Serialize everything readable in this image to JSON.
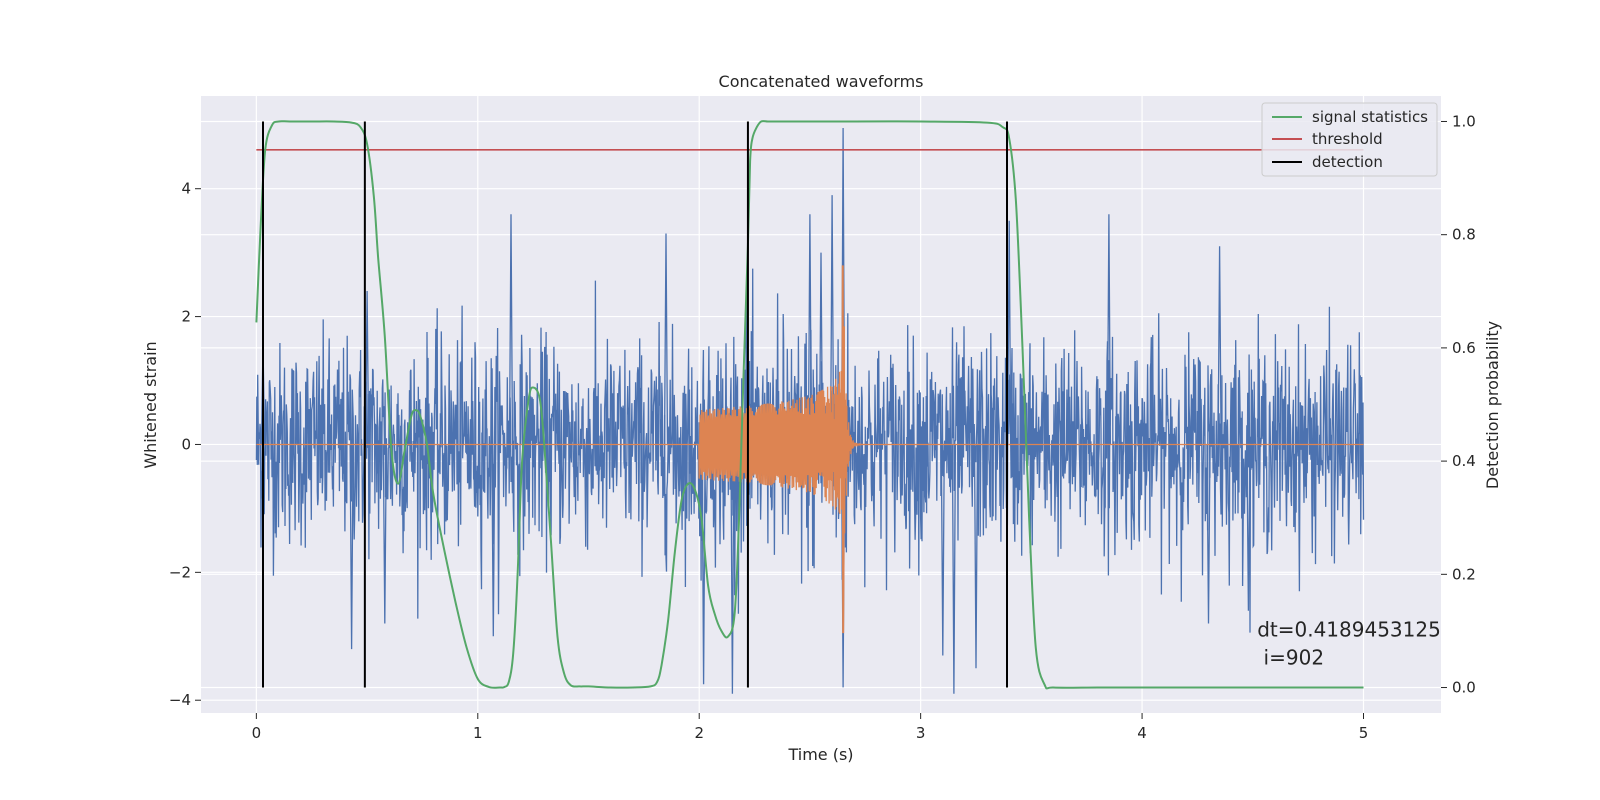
{
  "chart_data": {
    "type": "line",
    "title": "Concatenated waveforms",
    "xlabel": "Time (s)",
    "ylabel": "Whitened strain",
    "y2label": "Detection probability",
    "xlim": [
      -0.25,
      5.35
    ],
    "ylim": [
      -4.2,
      5.45
    ],
    "y2lim": [
      -0.045,
      1.045
    ],
    "xticks": [
      0,
      1,
      2,
      3,
      4,
      5
    ],
    "yticks": [
      -4,
      -2,
      0,
      2,
      4
    ],
    "y2ticks": [
      0.0,
      0.2,
      0.4,
      0.6,
      0.8,
      1.0
    ],
    "xtick_labels": [
      "0",
      "1",
      "2",
      "3",
      "4",
      "5"
    ],
    "ytick_labels": [
      "−4",
      "−2",
      "0",
      "2",
      "4"
    ],
    "y2tick_labels": [
      "0.0",
      "0.2",
      "0.4",
      "0.6",
      "0.8",
      "1.0"
    ],
    "grid": true,
    "legend_position": "top-right",
    "colors": {
      "background": "#eaeaf2",
      "grid": "#ffffff",
      "strain": "#4c72b0",
      "template": "#dd8452",
      "signal_statistics": "#55a868",
      "threshold": "#c44e52",
      "detection": "#000000"
    },
    "strain": {
      "name": "",
      "x_range": [
        0,
        5
      ],
      "typical_abs_peak": 1.8,
      "max": 4.95,
      "min": -3.9,
      "notable_peaks": [
        {
          "x": 0.03,
          "y": 1.6
        },
        {
          "x": 0.5,
          "y": 2.4
        },
        {
          "x": 1.15,
          "y": 3.6
        },
        {
          "x": 1.85,
          "y": 3.3
        },
        {
          "x": 2.5,
          "y": 3.6
        },
        {
          "x": 2.6,
          "y": 3.9
        },
        {
          "x": 2.65,
          "y": 4.95
        },
        {
          "x": 2.55,
          "y": 3.0
        },
        {
          "x": 3.4,
          "y": 3.5
        },
        {
          "x": 3.85,
          "y": 3.6
        },
        {
          "x": 4.35,
          "y": 3.1
        },
        {
          "x": 0.43,
          "y": -3.2
        },
        {
          "x": 0.58,
          "y": -2.8
        },
        {
          "x": 1.07,
          "y": -3.0
        },
        {
          "x": 2.02,
          "y": -3.75
        },
        {
          "x": 2.15,
          "y": -3.9
        },
        {
          "x": 2.65,
          "y": -3.8
        },
        {
          "x": 3.1,
          "y": -3.3
        },
        {
          "x": 3.15,
          "y": -3.9
        },
        {
          "x": 3.25,
          "y": -3.5
        },
        {
          "x": 4.3,
          "y": -2.8
        },
        {
          "x": 4.48,
          "y": -2.6
        }
      ]
    },
    "template": {
      "name": "",
      "x_range": [
        0,
        5
      ],
      "chirp_start": 2.0,
      "merger": 2.65,
      "start_amplitude": 0.55,
      "peak_max": 2.8,
      "peak_min": -2.95,
      "ringdown_end": 3.0
    },
    "signal_statistics": {
      "name": "signal statistics",
      "x": [
        0.0,
        0.02,
        0.04,
        0.07,
        0.1,
        0.15,
        0.25,
        0.35,
        0.43,
        0.47,
        0.5,
        0.53,
        0.55,
        0.58,
        0.61,
        0.64,
        0.67,
        0.7,
        0.72,
        0.74,
        0.77,
        0.8,
        0.85,
        0.9,
        0.95,
        1.0,
        1.05,
        1.1,
        1.12,
        1.14,
        1.16,
        1.18,
        1.2,
        1.23,
        1.25,
        1.28,
        1.3,
        1.33,
        1.36,
        1.39,
        1.42,
        1.46,
        1.5,
        1.6,
        1.7,
        1.78,
        1.81,
        1.83,
        1.86,
        1.89,
        1.92,
        1.95,
        1.98,
        2.01,
        2.04,
        2.07,
        2.1,
        2.13,
        2.16,
        2.18,
        2.2,
        2.22,
        2.23,
        2.24,
        2.26,
        2.28,
        2.31,
        2.35,
        2.45,
        2.7,
        3.0,
        3.3,
        3.37,
        3.4,
        3.43,
        3.46,
        3.49,
        3.52,
        3.56,
        3.6,
        3.8,
        4.0,
        4.3,
        4.6,
        4.8,
        5.0
      ],
      "y": [
        0.645,
        0.82,
        0.95,
        0.993,
        1.0,
        1.0,
        1.0,
        1.0,
        0.998,
        0.99,
        0.96,
        0.87,
        0.76,
        0.62,
        0.42,
        0.36,
        0.42,
        0.48,
        0.49,
        0.48,
        0.43,
        0.34,
        0.24,
        0.15,
        0.07,
        0.015,
        0.001,
        0.0,
        0.001,
        0.01,
        0.06,
        0.2,
        0.4,
        0.51,
        0.53,
        0.51,
        0.43,
        0.26,
        0.09,
        0.025,
        0.004,
        0.002,
        0.002,
        0.0,
        0.0,
        0.002,
        0.01,
        0.04,
        0.12,
        0.24,
        0.33,
        0.36,
        0.35,
        0.3,
        0.18,
        0.13,
        0.1,
        0.09,
        0.13,
        0.3,
        0.55,
        0.78,
        0.93,
        0.97,
        0.99,
        1.0,
        1.0,
        1.0,
        1.0,
        1.0,
        1.0,
        0.998,
        0.99,
        0.97,
        0.86,
        0.6,
        0.3,
        0.07,
        0.005,
        0.0,
        0.0,
        0.0,
        0.0,
        0.0,
        0.0,
        0.0
      ]
    },
    "threshold": {
      "name": "threshold",
      "value": 0.95,
      "x_range": [
        0,
        5
      ]
    },
    "detection": {
      "name": "detection",
      "x": [
        0.03,
        0.49,
        2.22,
        3.39
      ],
      "y_range": [
        0.0,
        1.0
      ]
    },
    "annotation": {
      "line1": "dt=0.4189453125",
      "line2": " i=902",
      "x": 4.52,
      "y": -3.0
    }
  }
}
